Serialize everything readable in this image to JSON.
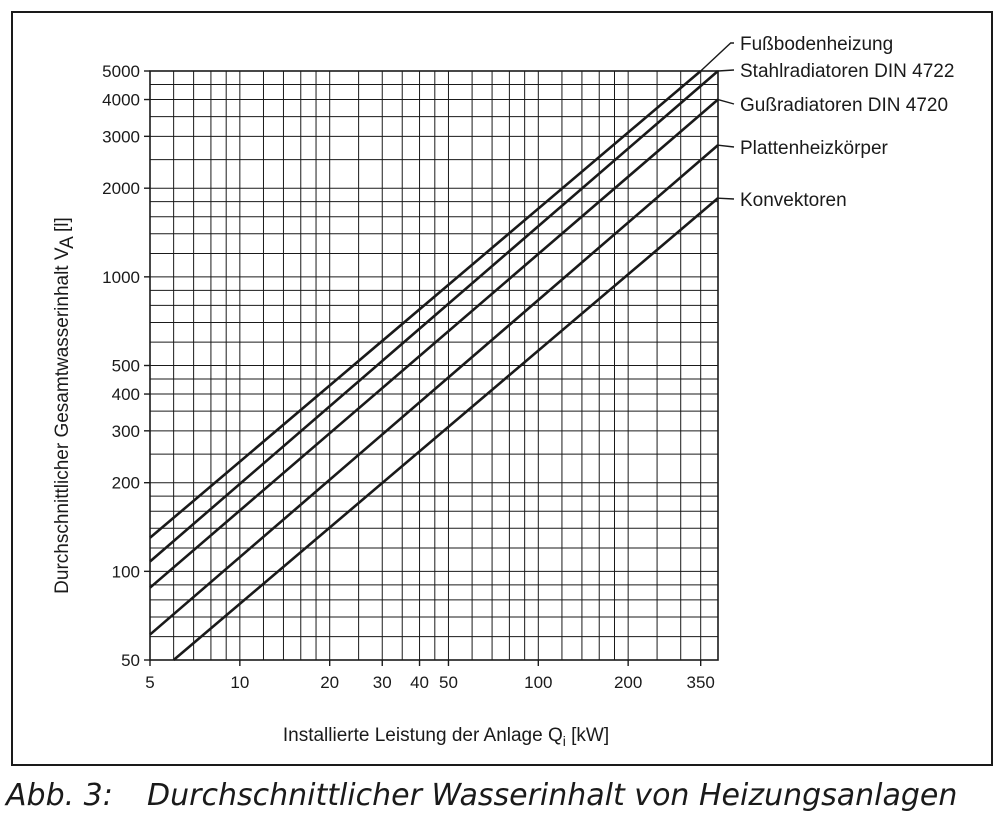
{
  "caption": {
    "number": "Abb. 3:",
    "text": "Durchschnittlicher Wasserinhalt von Heizungsanlagen"
  },
  "chart_data": {
    "type": "line",
    "xscale": "log",
    "yscale": "log",
    "xlim": [
      5,
      400
    ],
    "ylim": [
      50,
      5000
    ],
    "grid": true,
    "xlabel": "Installierte Leistung der Anlage Q",
    "xlabel_sub": "i",
    "xlabel_unit": " [kW]",
    "ylabel": "Durchschnittlicher Gesamtwasserinhalt V",
    "ylabel_sub": "A",
    "ylabel_unit": " [l]",
    "xticks": [
      5,
      10,
      20,
      30,
      40,
      50,
      100,
      200,
      350
    ],
    "xtick_labels": [
      "5",
      "10",
      "20",
      "30",
      "40",
      "50",
      "100",
      "200",
      "350"
    ],
    "yticks": [
      50,
      100,
      200,
      300,
      400,
      500,
      1000,
      2000,
      3000,
      4000,
      5000
    ],
    "ytick_labels": [
      "50",
      "100",
      "200",
      "300",
      "400",
      "500",
      "1000",
      "2000",
      "3000",
      "4000",
      "5000"
    ],
    "x_gridlines": [
      5,
      6,
      7,
      8,
      9,
      10,
      12,
      14,
      16,
      18,
      20,
      25,
      30,
      35,
      40,
      45,
      50,
      60,
      70,
      80,
      90,
      100,
      120,
      140,
      160,
      180,
      200,
      250,
      300,
      350,
      400
    ],
    "y_gridlines": [
      50,
      60,
      70,
      80,
      90,
      100,
      120,
      140,
      160,
      180,
      200,
      250,
      300,
      350,
      400,
      450,
      500,
      600,
      700,
      800,
      900,
      1000,
      1200,
      1400,
      1600,
      1800,
      2000,
      2500,
      3000,
      3500,
      4000,
      4500,
      5000
    ],
    "legend_placement": "right",
    "series": [
      {
        "name": "Fußbodenheizung",
        "points": [
          [
            5,
            130
          ],
          [
            350,
            5000
          ]
        ]
      },
      {
        "name": "Stahlradiatoren DIN 4722",
        "points": [
          [
            5,
            108
          ],
          [
            400,
            5000
          ]
        ]
      },
      {
        "name": "Gußradiatoren DIN 4720",
        "points": [
          [
            5,
            88
          ],
          [
            400,
            4000
          ]
        ]
      },
      {
        "name": "Plattenheizkörper",
        "points": [
          [
            5,
            61
          ],
          [
            400,
            2800
          ]
        ]
      },
      {
        "name": "Konvektoren",
        "points": [
          [
            6,
            50
          ],
          [
            400,
            1850
          ]
        ]
      }
    ]
  }
}
